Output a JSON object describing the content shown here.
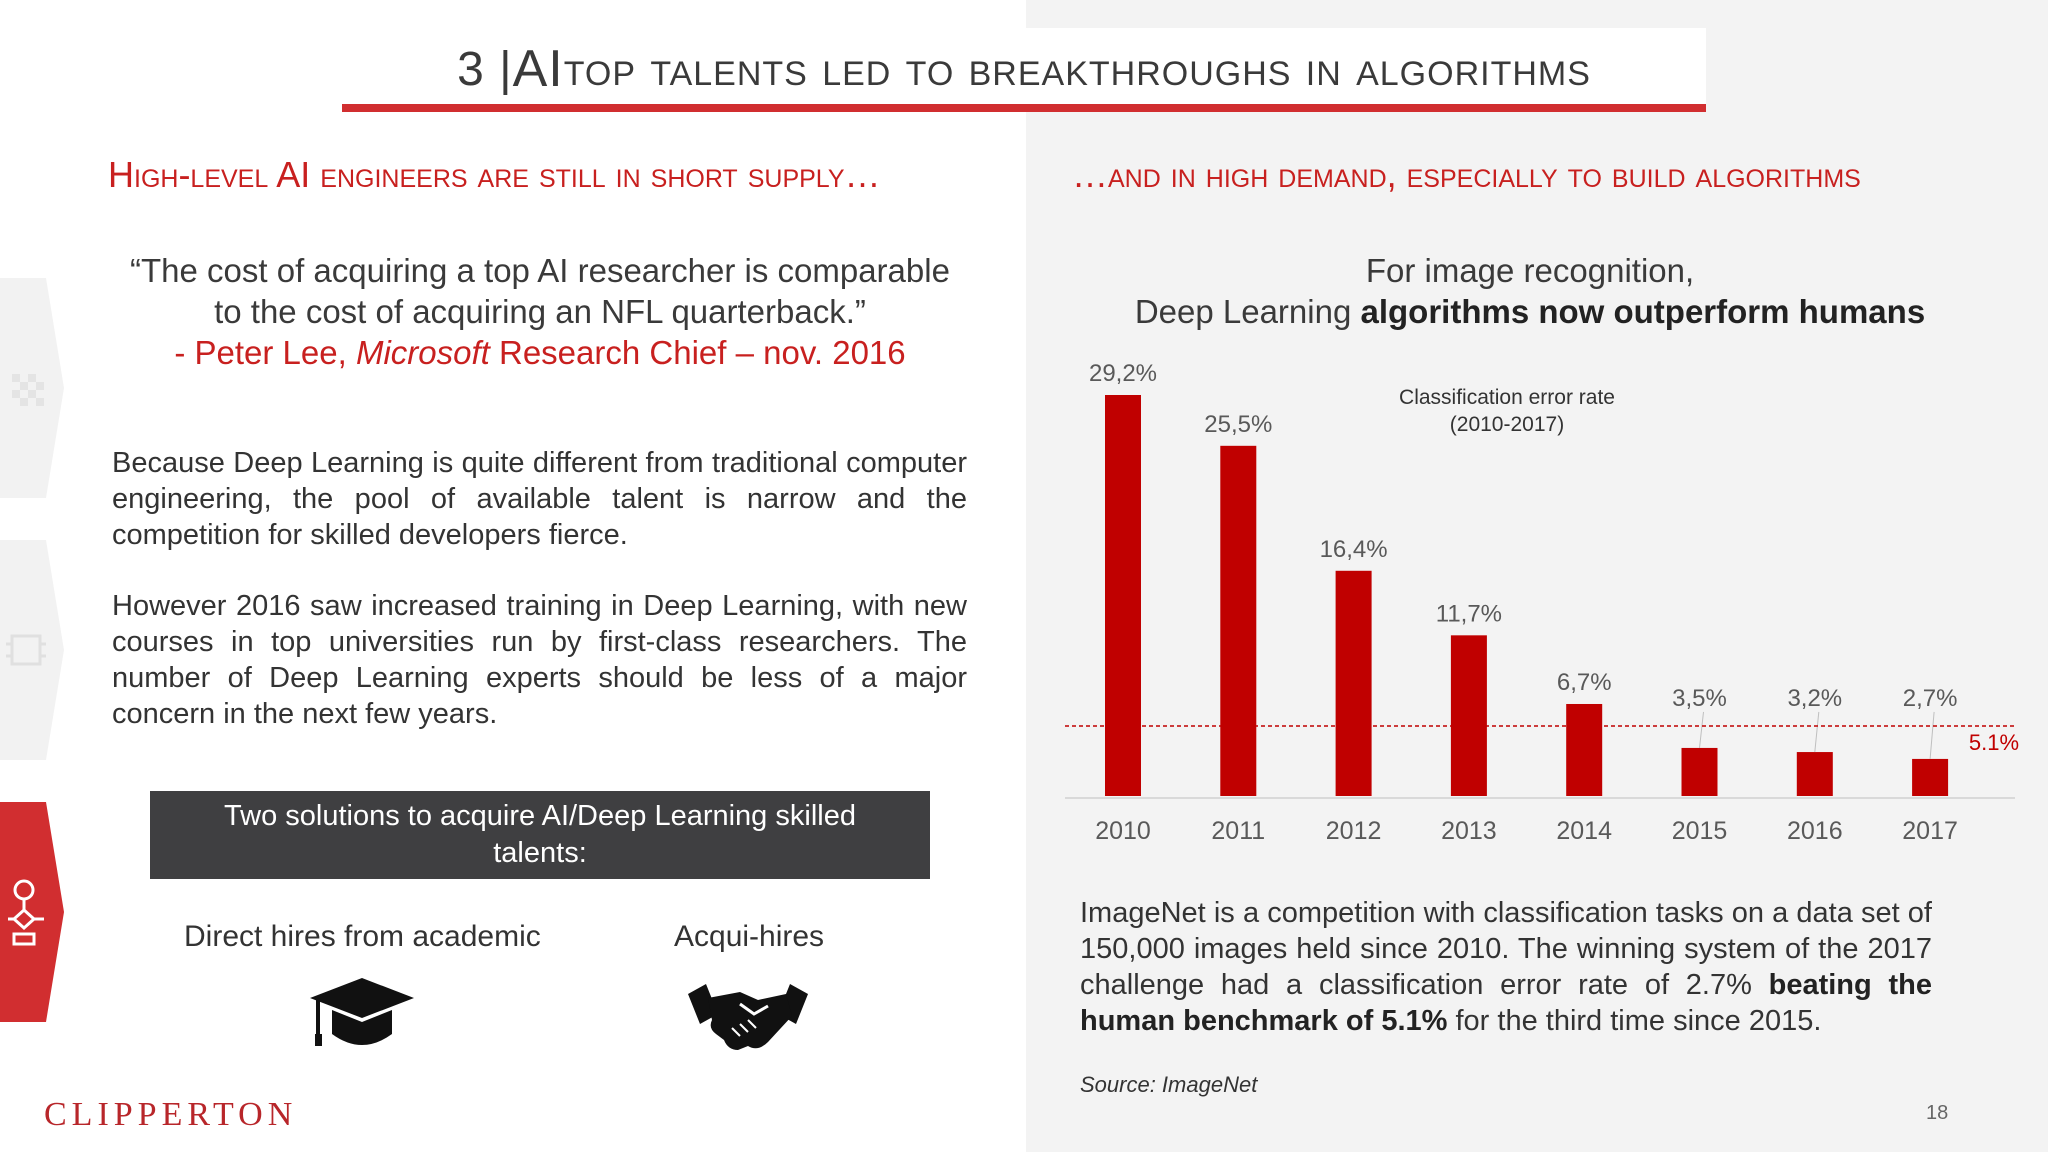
{
  "title": {
    "number": "3 | ",
    "ai": "AI",
    "rest": " top talents led to breakthroughs in algorithms"
  },
  "left": {
    "heading": "High-level AI engineers are still in short supply…",
    "quote": {
      "line1": "“The cost of acquiring a top AI researcher is comparable",
      "line2": "to the cost of acquiring an NFL quarterback.”",
      "attr_prefix": "- Peter Lee, ",
      "attr_company": "Microsoft",
      "attr_suffix": " Research Chief – nov. 2016"
    },
    "para1": "Because Deep Learning is quite different from traditional computer engineering, the pool of available talent is narrow and the competition for skilled developers fierce.",
    "para2": "However 2016 saw increased training in Deep Learning, with new courses in top universities run by first-class researchers. The number of Deep Learning experts should be less of a major concern in the next few years.",
    "solutions_title": "Two solutions to acquire AI/Deep Learning skilled talents:",
    "solution1": "Direct hires from academic",
    "solution2": "Acqui-hires",
    "icons": [
      "graduation-cap-icon",
      "handshake-icon"
    ]
  },
  "right": {
    "heading": "…and in high demand, especially to build algorithms",
    "chart_heading_line1": "For image recognition,",
    "chart_heading_line2_normal": "Deep Learning ",
    "chart_heading_line2_bold": "algorithms now outperform humans",
    "imagenet_text": "ImageNet is a competition with classification tasks on a data set of 150,000 images held since 2010. The winning system of the 2017 challenge had a classification error rate of 2.7% ",
    "imagenet_bold": "beating the human benchmark of 5.1%",
    "imagenet_end": " for the third time since 2015.",
    "source": "Source: ImageNet"
  },
  "chart_data": {
    "type": "bar",
    "title": "Classification error rate",
    "subtitle": "(2010-2017)",
    "categories": [
      "2010",
      "2011",
      "2012",
      "2013",
      "2014",
      "2015",
      "2016",
      "2017"
    ],
    "values": [
      29.2,
      25.5,
      16.4,
      11.7,
      6.7,
      3.5,
      3.2,
      2.7
    ],
    "value_labels": [
      "29,2%",
      "25,5%",
      "16,4%",
      "11,7%",
      "6,7%",
      "3,5%",
      "3,2%",
      "2,7%"
    ],
    "reference_line": {
      "value": 5.1,
      "label": "5.1%"
    },
    "ylim": [
      0,
      29.2
    ],
    "bar_color": "#c00000",
    "grid": false
  },
  "logo": "CLIPPERTON",
  "page_number": "18",
  "colors": {
    "accent": "#c8201f",
    "dark_box": "#3f3f41",
    "right_bg": "#f3f3f3"
  }
}
